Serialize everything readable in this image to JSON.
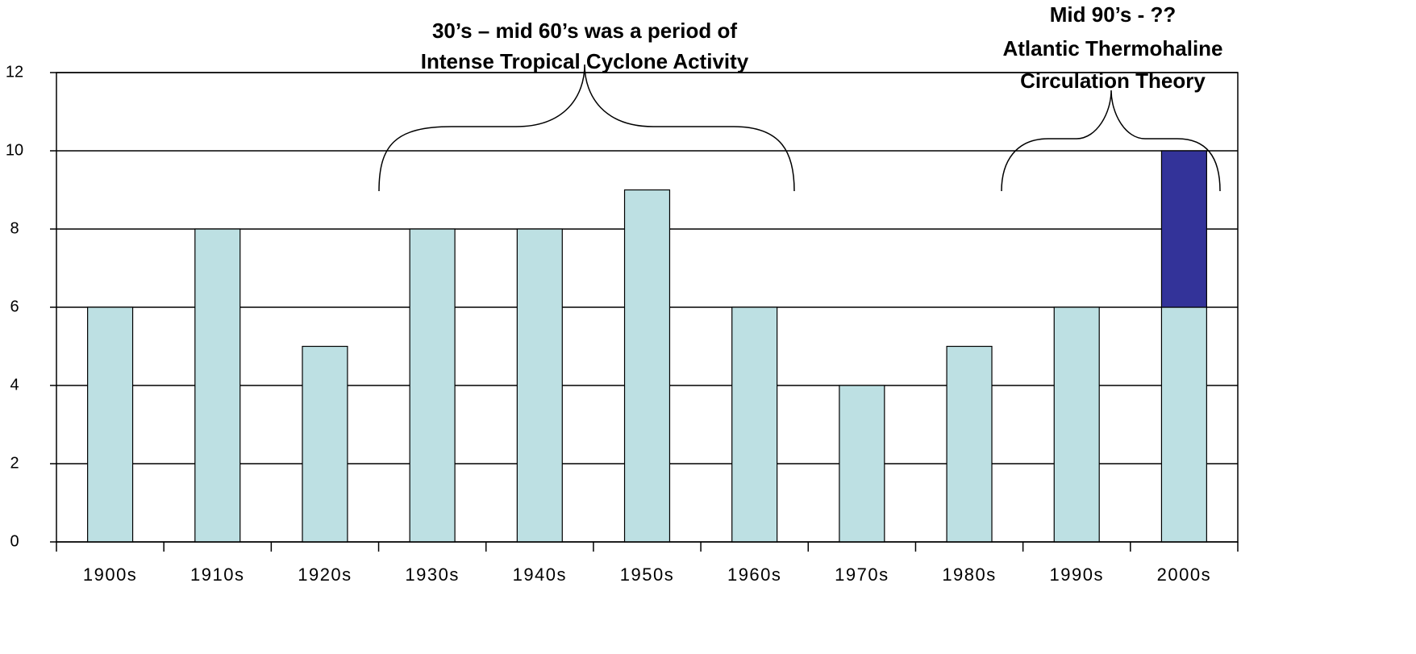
{
  "chart_data": {
    "type": "bar",
    "categories": [
      "1900s",
      "1910s",
      "1920s",
      "1930s",
      "1940s",
      "1950s",
      "1960s",
      "1970s",
      "1980s",
      "1990s",
      "2000s"
    ],
    "series": [
      {
        "color": "#bde0e3",
        "values": [
          6,
          8,
          5,
          8,
          8,
          9,
          6,
          4,
          5,
          6,
          6
        ]
      },
      {
        "color": "#333399",
        "values": [
          0,
          0,
          0,
          0,
          0,
          0,
          0,
          0,
          0,
          0,
          4
        ]
      }
    ],
    "stacked": true,
    "ylim": [
      0,
      12
    ],
    "yticks": [
      0,
      2,
      4,
      6,
      8,
      10,
      12
    ],
    "grid": true,
    "annotations": [
      {
        "lines": [
          "30’s – mid 60’s was a period of",
          "Intense Tropical Cyclone Activity"
        ]
      },
      {
        "lines": [
          "Mid 90’s - ??",
          "Atlantic Thermohaline",
          "Circulation Theory"
        ]
      }
    ]
  }
}
